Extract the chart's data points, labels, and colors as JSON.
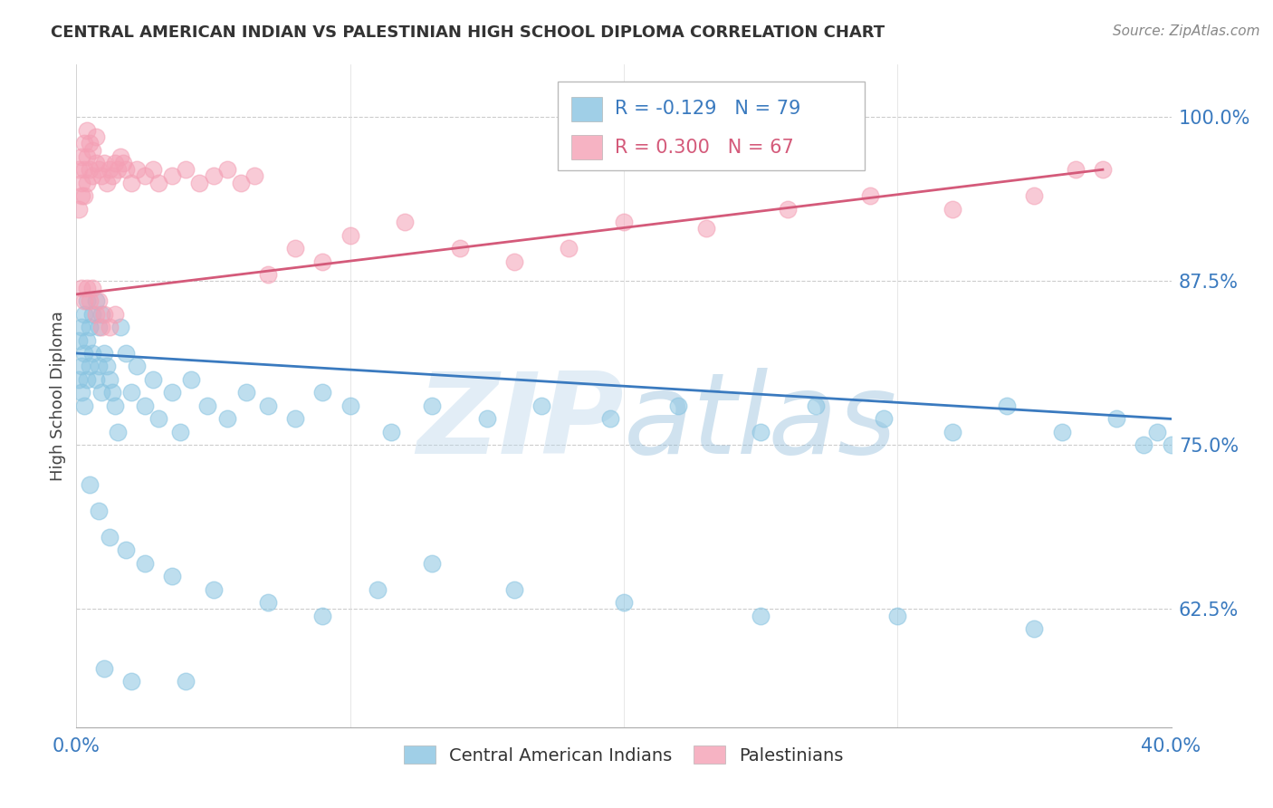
{
  "title": "CENTRAL AMERICAN INDIAN VS PALESTINIAN HIGH SCHOOL DIPLOMA CORRELATION CHART",
  "source": "Source: ZipAtlas.com",
  "ylabel": "High School Diploma",
  "xmin": 0.0,
  "xmax": 0.4,
  "ymin": 0.535,
  "ymax": 1.04,
  "yticks": [
    0.625,
    0.75,
    0.875,
    1.0
  ],
  "ytick_labels": [
    "62.5%",
    "75.0%",
    "87.5%",
    "100.0%"
  ],
  "xticks": [
    0.0,
    0.1,
    0.2,
    0.3,
    0.4
  ],
  "xtick_labels": [
    "0.0%",
    "",
    "",
    "",
    "40.0%"
  ],
  "legend_blue_label": "Central American Indians",
  "legend_pink_label": "Palestinians",
  "blue_R": -0.129,
  "blue_N": 79,
  "pink_R": 0.3,
  "pink_N": 67,
  "blue_color": "#89c4e1",
  "pink_color": "#f4a0b5",
  "blue_line_color": "#3a7abf",
  "pink_line_color": "#d45a7a",
  "watermark_zip": "ZIP",
  "watermark_atlas": "atlas",
  "blue_line_x0": 0.0,
  "blue_line_y0": 0.82,
  "blue_line_x1": 0.4,
  "blue_line_y1": 0.77,
  "pink_line_x0": 0.0,
  "pink_line_y0": 0.865,
  "pink_line_x1": 0.375,
  "pink_line_y1": 0.96,
  "blue_scatter_x": [
    0.001,
    0.001,
    0.002,
    0.002,
    0.002,
    0.003,
    0.003,
    0.003,
    0.004,
    0.004,
    0.004,
    0.005,
    0.005,
    0.006,
    0.006,
    0.007,
    0.007,
    0.008,
    0.008,
    0.009,
    0.009,
    0.01,
    0.011,
    0.012,
    0.013,
    0.014,
    0.015,
    0.016,
    0.018,
    0.02,
    0.022,
    0.025,
    0.028,
    0.03,
    0.035,
    0.038,
    0.042,
    0.048,
    0.055,
    0.062,
    0.07,
    0.08,
    0.09,
    0.1,
    0.115,
    0.13,
    0.15,
    0.17,
    0.195,
    0.22,
    0.25,
    0.27,
    0.295,
    0.32,
    0.34,
    0.36,
    0.38,
    0.395,
    0.4,
    0.005,
    0.008,
    0.012,
    0.018,
    0.025,
    0.035,
    0.05,
    0.07,
    0.09,
    0.11,
    0.13,
    0.16,
    0.2,
    0.25,
    0.3,
    0.35,
    0.39,
    0.01,
    0.02,
    0.04
  ],
  "blue_scatter_y": [
    0.83,
    0.8,
    0.84,
    0.81,
    0.79,
    0.85,
    0.82,
    0.78,
    0.86,
    0.83,
    0.8,
    0.84,
    0.81,
    0.85,
    0.82,
    0.86,
    0.8,
    0.84,
    0.81,
    0.85,
    0.79,
    0.82,
    0.81,
    0.8,
    0.79,
    0.78,
    0.76,
    0.84,
    0.82,
    0.79,
    0.81,
    0.78,
    0.8,
    0.77,
    0.79,
    0.76,
    0.8,
    0.78,
    0.77,
    0.79,
    0.78,
    0.77,
    0.79,
    0.78,
    0.76,
    0.78,
    0.77,
    0.78,
    0.77,
    0.78,
    0.76,
    0.78,
    0.77,
    0.76,
    0.78,
    0.76,
    0.77,
    0.76,
    0.75,
    0.72,
    0.7,
    0.68,
    0.67,
    0.66,
    0.65,
    0.64,
    0.63,
    0.62,
    0.64,
    0.66,
    0.64,
    0.63,
    0.62,
    0.62,
    0.61,
    0.75,
    0.58,
    0.57,
    0.57
  ],
  "pink_scatter_x": [
    0.001,
    0.001,
    0.002,
    0.002,
    0.002,
    0.003,
    0.003,
    0.003,
    0.004,
    0.004,
    0.004,
    0.005,
    0.005,
    0.006,
    0.006,
    0.007,
    0.007,
    0.008,
    0.009,
    0.01,
    0.011,
    0.012,
    0.013,
    0.014,
    0.015,
    0.016,
    0.017,
    0.018,
    0.02,
    0.022,
    0.025,
    0.028,
    0.03,
    0.035,
    0.04,
    0.045,
    0.05,
    0.055,
    0.06,
    0.065,
    0.07,
    0.08,
    0.09,
    0.1,
    0.12,
    0.14,
    0.16,
    0.18,
    0.2,
    0.23,
    0.26,
    0.29,
    0.32,
    0.35,
    0.365,
    0.375,
    0.002,
    0.003,
    0.004,
    0.005,
    0.006,
    0.007,
    0.008,
    0.009,
    0.01,
    0.012,
    0.014
  ],
  "pink_scatter_y": [
    0.93,
    0.96,
    0.97,
    0.95,
    0.94,
    0.98,
    0.96,
    0.94,
    0.99,
    0.97,
    0.95,
    0.98,
    0.96,
    0.975,
    0.955,
    0.985,
    0.965,
    0.96,
    0.955,
    0.965,
    0.95,
    0.96,
    0.955,
    0.965,
    0.96,
    0.97,
    0.965,
    0.96,
    0.95,
    0.96,
    0.955,
    0.96,
    0.95,
    0.955,
    0.96,
    0.95,
    0.955,
    0.96,
    0.95,
    0.955,
    0.88,
    0.9,
    0.89,
    0.91,
    0.92,
    0.9,
    0.89,
    0.9,
    0.92,
    0.915,
    0.93,
    0.94,
    0.93,
    0.94,
    0.96,
    0.96,
    0.87,
    0.86,
    0.87,
    0.86,
    0.87,
    0.85,
    0.86,
    0.84,
    0.85,
    0.84,
    0.85
  ]
}
